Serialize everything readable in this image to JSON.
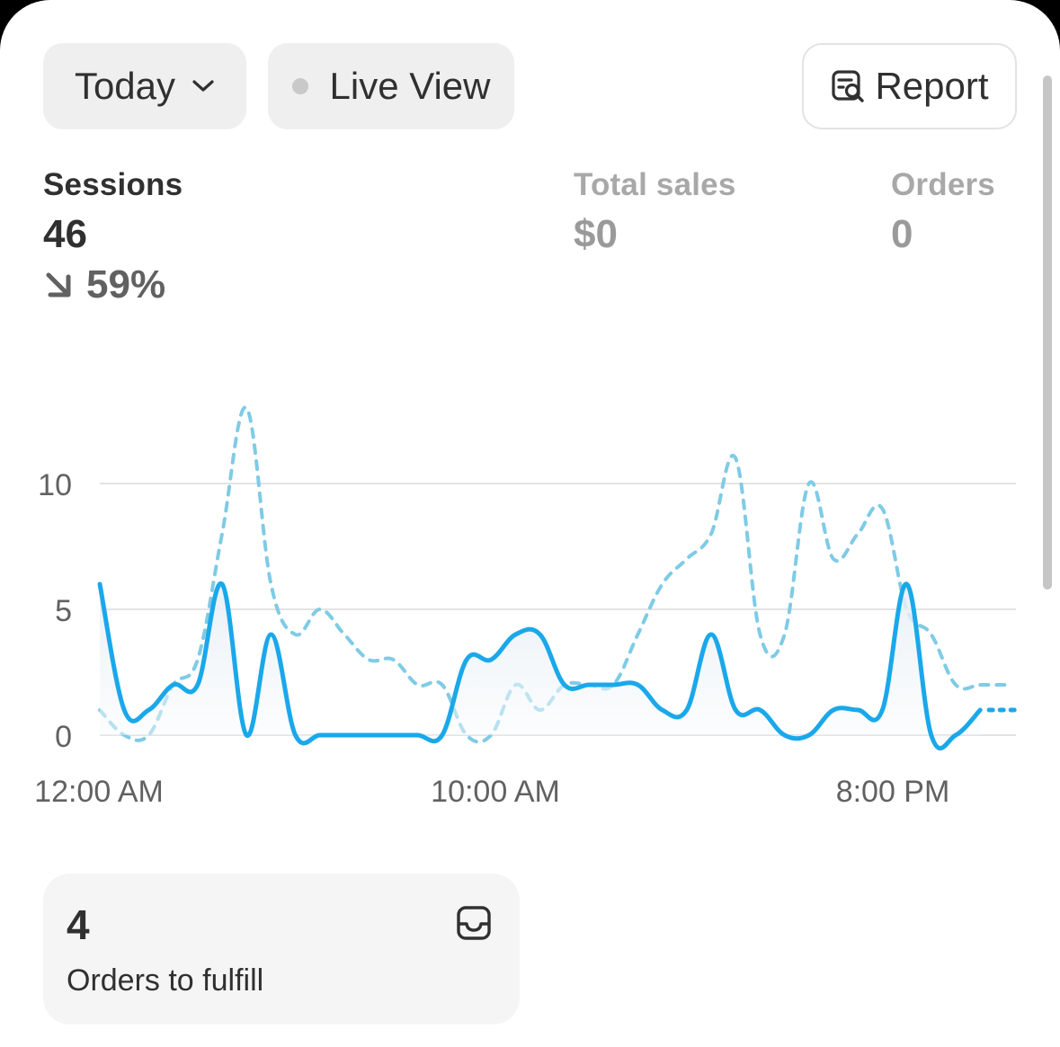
{
  "filters": {
    "date_range": "Today",
    "live_view": "Live View",
    "report": "Report"
  },
  "metrics": {
    "sessions": {
      "label": "Sessions",
      "value": "46",
      "change": "59%",
      "change_direction": "down"
    },
    "total_sales": {
      "label": "Total sales",
      "value": "$0"
    },
    "orders": {
      "label": "Orders",
      "value": "0"
    }
  },
  "chart_data": {
    "type": "line",
    "x_tick_labels": [
      "12:00 AM",
      "10:00 AM",
      "8:00 PM"
    ],
    "y_tick_labels": [
      "0",
      "5",
      "10"
    ],
    "ylim": [
      0,
      13
    ],
    "grid": true,
    "series": [
      {
        "style": "solid",
        "color": "#1aa8ea",
        "values": [
          6,
          1,
          1,
          2,
          2,
          6,
          0,
          4,
          0,
          0,
          0,
          0,
          0,
          0,
          0,
          3,
          3,
          4,
          4,
          2,
          2,
          2,
          2,
          1,
          1,
          4,
          1,
          1,
          0,
          0,
          1,
          1,
          1,
          6,
          0,
          0,
          1
        ],
        "projected_tail": [
          1,
          1
        ]
      },
      {
        "style": "dashed",
        "color": "#7fcbe6",
        "values": [
          1,
          0,
          0,
          2,
          3,
          8,
          13,
          6,
          4,
          5,
          4,
          3,
          3,
          2,
          2,
          0,
          0,
          2,
          1,
          2,
          2,
          2,
          4,
          6,
          7,
          8,
          11,
          4,
          4,
          10,
          7,
          8,
          9,
          5,
          4,
          2,
          2,
          2
        ]
      }
    ]
  },
  "fulfill": {
    "count": "4",
    "label": "Orders to fulfill"
  },
  "colors": {
    "accent": "#1aa8ea",
    "comparison": "#7fcbe6",
    "gridline": "#e3e3e3"
  }
}
